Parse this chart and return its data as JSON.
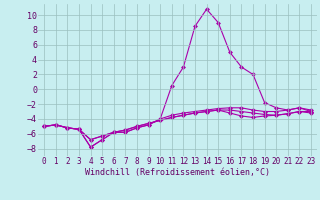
{
  "x": [
    0,
    1,
    2,
    3,
    4,
    5,
    6,
    7,
    8,
    9,
    10,
    11,
    12,
    13,
    14,
    15,
    16,
    17,
    18,
    19,
    20,
    21,
    22,
    23
  ],
  "line1": [
    -5.0,
    -4.8,
    -5.2,
    -5.4,
    -7.8,
    -6.8,
    -5.8,
    -5.8,
    -5.2,
    -4.8,
    -4.0,
    0.5,
    3.0,
    8.5,
    10.8,
    9.0,
    5.0,
    3.0,
    2.0,
    -1.8,
    -2.5,
    -2.8,
    -2.5,
    -3.0
  ],
  "line2": [
    -5.0,
    -4.8,
    -5.2,
    -5.4,
    -7.8,
    -6.8,
    -5.8,
    -5.8,
    -5.2,
    -4.8,
    -4.0,
    -3.5,
    -3.2,
    -3.0,
    -2.8,
    -2.6,
    -2.5,
    -2.5,
    -2.8,
    -3.0,
    -3.0,
    -2.8,
    -2.5,
    -2.8
  ],
  "line3": [
    -5.0,
    -4.8,
    -5.2,
    -5.4,
    -6.8,
    -6.3,
    -5.8,
    -5.5,
    -5.0,
    -4.6,
    -4.2,
    -3.8,
    -3.5,
    -3.2,
    -3.0,
    -2.8,
    -2.8,
    -3.0,
    -3.2,
    -3.4,
    -3.5,
    -3.3,
    -3.0,
    -3.2
  ],
  "line4": [
    -5.0,
    -4.8,
    -5.2,
    -5.4,
    -6.8,
    -6.3,
    -5.8,
    -5.5,
    -5.0,
    -4.6,
    -4.2,
    -3.8,
    -3.5,
    -3.2,
    -3.0,
    -2.8,
    -3.2,
    -3.6,
    -3.8,
    -3.6,
    -3.5,
    -3.3,
    -3.0,
    -3.0
  ],
  "line_color": "#aa00aa",
  "bg_color": "#c8eef0",
  "grid_color": "#9bbfbf",
  "tick_color": "#660066",
  "xlabel": "Windchill (Refroidissement éolien,°C)",
  "ylim": [
    -9,
    11.5
  ],
  "xlim": [
    -0.5,
    23.5
  ],
  "yticks": [
    -8,
    -6,
    -4,
    -2,
    0,
    2,
    4,
    6,
    8,
    10
  ],
  "xticks": [
    0,
    1,
    2,
    3,
    4,
    5,
    6,
    7,
    8,
    9,
    10,
    11,
    12,
    13,
    14,
    15,
    16,
    17,
    18,
    19,
    20,
    21,
    22,
    23
  ]
}
